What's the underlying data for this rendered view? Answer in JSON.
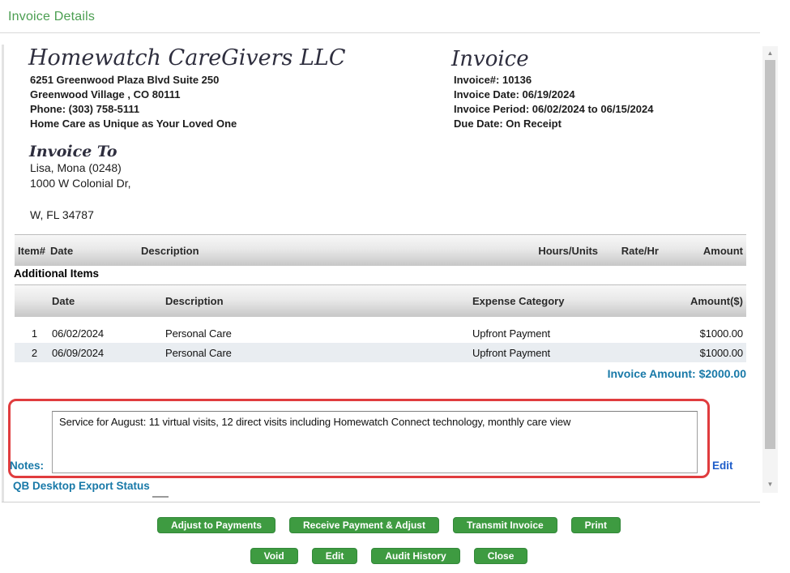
{
  "page": {
    "title": "Invoice Details"
  },
  "company": {
    "name": "Homewatch CareGivers LLC",
    "lines": [
      "6251 Greenwood Plaza Blvd  Suite 250",
      "Greenwood Village , CO 80111",
      "Phone: (303) 758-5111",
      "Home Care as Unique as Your Loved One"
    ]
  },
  "invoice": {
    "title": "Invoice",
    "lines": [
      "Invoice#: 10136",
      "Invoice Date: 06/19/2024",
      "Invoice Period: 06/02/2024 to 06/15/2024",
      "Due Date: On Receipt"
    ]
  },
  "invoice_to": {
    "heading": "Invoice To",
    "lines": [
      "Lisa, Mona (0248)",
      "1000 W Colonial Dr,",
      "W, FL 34787"
    ]
  },
  "items_table": {
    "headers": [
      "Item#",
      "Date",
      "Description",
      "Hours/Units",
      "Rate/Hr",
      "Amount"
    ]
  },
  "additional_items": {
    "heading": "Additional Items",
    "headers": [
      "Date",
      "Description",
      "Expense Category",
      "Amount($)"
    ],
    "rows": [
      {
        "num": "1",
        "date": "06/02/2024",
        "description": "Personal Care",
        "category": "Upfront Payment",
        "amount": "$1000.00"
      },
      {
        "num": "2",
        "date": "06/09/2024",
        "description": "Personal Care",
        "category": "Upfront Payment",
        "amount": "$1000.00"
      }
    ]
  },
  "totals": {
    "invoice_amount": "Invoice Amount: $2000.00"
  },
  "notes": {
    "label": "Notes:",
    "text": "Service for August: 11 virtual visits, 12 direct visits including Homewatch Connect technology, monthly care view",
    "edit_label": "Edit"
  },
  "qb_status": {
    "label": "QB Desktop Export Status"
  },
  "buttons": {
    "row1": [
      "Adjust to Payments",
      "Receive Payment & Adjust",
      "Transmit Invoice",
      "Print"
    ],
    "row2": [
      "Void",
      "Edit",
      "Audit History",
      "Close"
    ]
  },
  "icons": {
    "scroll_up": "▲",
    "scroll_down": "▼"
  },
  "colors": {
    "title_green": "#4b9e51",
    "button_green": "#3e9b41",
    "label_blue": "#1879a8",
    "edit_blue": "#1d5cc9",
    "highlight_red": "#e03c3e"
  }
}
